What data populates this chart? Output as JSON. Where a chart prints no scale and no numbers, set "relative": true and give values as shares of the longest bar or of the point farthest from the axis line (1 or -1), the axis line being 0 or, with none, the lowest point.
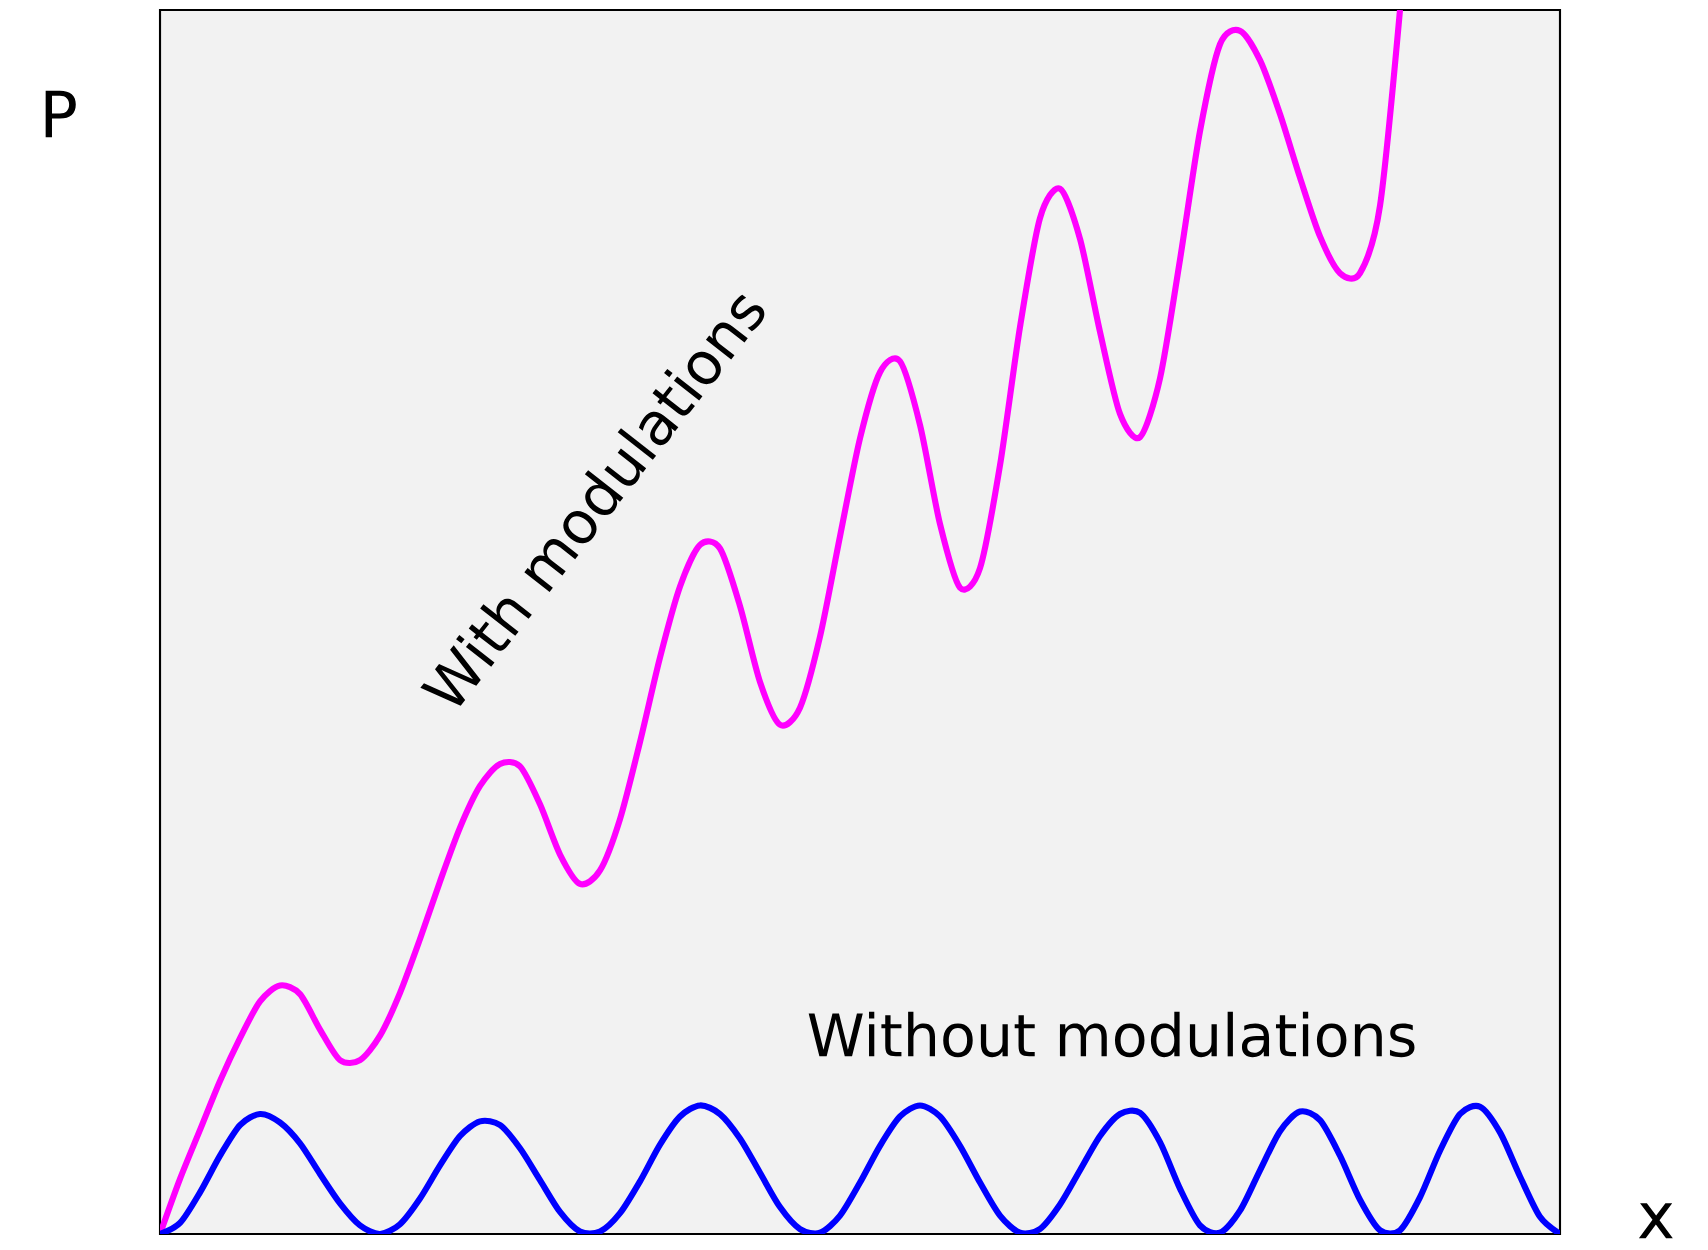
{
  "chart_data": {
    "type": "line",
    "relative": true,
    "xlabel": "x",
    "ylabel": "P",
    "marker": "none",
    "line_style": "solid",
    "categories": [
      null,
      null,
      null,
      null,
      null,
      null,
      null,
      null,
      null,
      null,
      null,
      null,
      null,
      null,
      null,
      null,
      null,
      null,
      null,
      null,
      null,
      null,
      null,
      null,
      null,
      null,
      null,
      null,
      null,
      null,
      null,
      null,
      null,
      null,
      null,
      null,
      null,
      null,
      null,
      null,
      null,
      null,
      null,
      null,
      null,
      null,
      null,
      null,
      null,
      null,
      null,
      null,
      null,
      null,
      null,
      null,
      null,
      null,
      null,
      null,
      null,
      null,
      null,
      null,
      null,
      null,
      null,
      null,
      null,
      null,
      null
    ],
    "series": [
      {
        "name": "With modulations",
        "color": "#ff00ff",
        "values": [
          0,
          0.045,
          0.085,
          0.125,
          0.16,
          0.19,
          0.203,
          0.196,
          0.167,
          0.142,
          0.142,
          0.162,
          0.197,
          0.241,
          0.288,
          0.332,
          0.366,
          0.384,
          0.382,
          0.351,
          0.31,
          0.286,
          0.297,
          0.339,
          0.402,
          0.471,
          0.529,
          0.563,
          0.56,
          0.513,
          0.451,
          0.416,
          0.43,
          0.488,
          0.57,
          0.65,
          0.704,
          0.713,
          0.661,
          0.58,
          0.528,
          0.544,
          0.628,
          0.741,
          0.83,
          0.854,
          0.813,
          0.737,
          0.67,
          0.651,
          0.699,
          0.796,
          0.901,
          0.972,
          0.983,
          0.959,
          0.915,
          0.863,
          0.815,
          0.785,
          0.785,
          0.84,
          1,
          null,
          null,
          null,
          null,
          null,
          null,
          null,
          null
        ]
      },
      {
        "name": "Without modulations",
        "color": "#0000ff",
        "values": [
          0,
          0.009,
          0.034,
          0.064,
          0.089,
          0.098,
          0.091,
          0.074,
          0.049,
          0.025,
          0.007,
          0,
          0.008,
          0.029,
          0.056,
          0.08,
          0.092,
          0.089,
          0.07,
          0.044,
          0.018,
          0.002,
          0.002,
          0.017,
          0.043,
          0.073,
          0.096,
          0.105,
          0.098,
          0.078,
          0.05,
          0.022,
          0.004,
          0.001,
          0.015,
          0.042,
          0.072,
          0.096,
          0.105,
          0.096,
          0.072,
          0.042,
          0.015,
          0.001,
          0.004,
          0.024,
          0.052,
          0.08,
          0.098,
          0.099,
          0.075,
          0.037,
          0.007,
          0.001,
          0.019,
          0.052,
          0.084,
          0.1,
          0.093,
          0.064,
          0.028,
          0.003,
          0.003,
          0.03,
          0.068,
          0.098,
          0.104,
          0.083,
          0.047,
          0.014,
          0
        ]
      }
    ]
  }
}
